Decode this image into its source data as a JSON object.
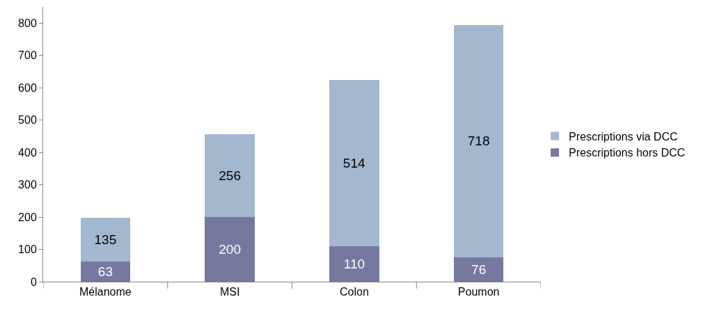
{
  "chart_data": {
    "type": "bar",
    "stacked": true,
    "categories": [
      "Mélanome",
      "MSI",
      "Colon",
      "Poumon"
    ],
    "series": [
      {
        "name": "Prescriptions hors DCC",
        "color": "#75799f",
        "values": [
          63,
          200,
          110,
          76
        ]
      },
      {
        "name": "Prescriptions via DCC",
        "color": "#a3b8cf",
        "values": [
          135,
          256,
          514,
          718
        ]
      }
    ],
    "ylim": [
      0,
      850
    ],
    "yticks": [
      0,
      100,
      200,
      300,
      400,
      500,
      600,
      700,
      800
    ],
    "grid": false,
    "legend": "right",
    "data_labels": true
  }
}
